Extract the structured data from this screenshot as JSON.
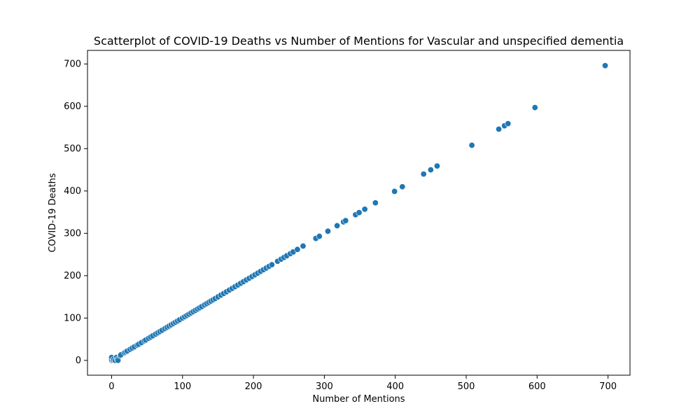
{
  "chart_data": {
    "type": "scatter",
    "title": "Scatterplot of COVID-19 Deaths vs Number of Mentions for Vascular and unspecified dementia",
    "xlabel": "Number of Mentions",
    "ylabel": "COVID-19 Deaths",
    "xlim": [
      -34,
      731
    ],
    "ylim": [
      -35,
      732
    ],
    "xticks": [
      0,
      100,
      200,
      300,
      400,
      500,
      600,
      700
    ],
    "yticks": [
      0,
      100,
      200,
      300,
      400,
      500,
      600,
      700
    ],
    "grid": false,
    "marker_color": "#1f77b4",
    "points": [
      {
        "x": 0,
        "y": 0
      },
      {
        "x": 0,
        "y": 2
      },
      {
        "x": 0,
        "y": 7
      },
      {
        "x": 2,
        "y": 1
      },
      {
        "x": 3,
        "y": 3
      },
      {
        "x": 5,
        "y": 0
      },
      {
        "x": 7,
        "y": 7
      },
      {
        "x": 8,
        "y": 2
      },
      {
        "x": 9,
        "y": 0
      },
      {
        "x": 12,
        "y": 11
      },
      {
        "x": 13,
        "y": 13
      },
      {
        "x": 18,
        "y": 18
      },
      {
        "x": 20,
        "y": 20
      },
      {
        "x": 22,
        "y": 22
      },
      {
        "x": 26,
        "y": 26
      },
      {
        "x": 29,
        "y": 29
      },
      {
        "x": 32,
        "y": 32
      },
      {
        "x": 36,
        "y": 36
      },
      {
        "x": 38,
        "y": 38
      },
      {
        "x": 42,
        "y": 42
      },
      {
        "x": 46,
        "y": 46
      },
      {
        "x": 48,
        "y": 48
      },
      {
        "x": 52,
        "y": 52
      },
      {
        "x": 55,
        "y": 55
      },
      {
        "x": 58,
        "y": 58
      },
      {
        "x": 62,
        "y": 62
      },
      {
        "x": 65,
        "y": 65
      },
      {
        "x": 68,
        "y": 68
      },
      {
        "x": 71,
        "y": 71
      },
      {
        "x": 75,
        "y": 75
      },
      {
        "x": 78,
        "y": 78
      },
      {
        "x": 81,
        "y": 81
      },
      {
        "x": 84,
        "y": 84
      },
      {
        "x": 87,
        "y": 87
      },
      {
        "x": 90,
        "y": 90
      },
      {
        "x": 93,
        "y": 93
      },
      {
        "x": 96,
        "y": 96
      },
      {
        "x": 100,
        "y": 100
      },
      {
        "x": 103,
        "y": 103
      },
      {
        "x": 106,
        "y": 106
      },
      {
        "x": 109,
        "y": 109
      },
      {
        "x": 112,
        "y": 112
      },
      {
        "x": 115,
        "y": 115
      },
      {
        "x": 118,
        "y": 118
      },
      {
        "x": 121,
        "y": 121
      },
      {
        "x": 124,
        "y": 124
      },
      {
        "x": 127,
        "y": 127
      },
      {
        "x": 131,
        "y": 131
      },
      {
        "x": 134,
        "y": 134
      },
      {
        "x": 137,
        "y": 137
      },
      {
        "x": 140,
        "y": 140
      },
      {
        "x": 143,
        "y": 143
      },
      {
        "x": 146,
        "y": 146
      },
      {
        "x": 150,
        "y": 150
      },
      {
        "x": 154,
        "y": 154
      },
      {
        "x": 158,
        "y": 158
      },
      {
        "x": 162,
        "y": 162
      },
      {
        "x": 166,
        "y": 166
      },
      {
        "x": 170,
        "y": 170
      },
      {
        "x": 174,
        "y": 174
      },
      {
        "x": 178,
        "y": 178
      },
      {
        "x": 182,
        "y": 182
      },
      {
        "x": 186,
        "y": 186
      },
      {
        "x": 190,
        "y": 190
      },
      {
        "x": 194,
        "y": 194
      },
      {
        "x": 198,
        "y": 198
      },
      {
        "x": 202,
        "y": 202
      },
      {
        "x": 206,
        "y": 206
      },
      {
        "x": 210,
        "y": 210
      },
      {
        "x": 214,
        "y": 214
      },
      {
        "x": 218,
        "y": 218
      },
      {
        "x": 222,
        "y": 222
      },
      {
        "x": 226,
        "y": 226
      },
      {
        "x": 234,
        "y": 234
      },
      {
        "x": 239,
        "y": 239
      },
      {
        "x": 243,
        "y": 243
      },
      {
        "x": 247,
        "y": 247
      },
      {
        "x": 252,
        "y": 252
      },
      {
        "x": 256,
        "y": 256
      },
      {
        "x": 262,
        "y": 262
      },
      {
        "x": 270,
        "y": 270
      },
      {
        "x": 288,
        "y": 288
      },
      {
        "x": 293,
        "y": 293
      },
      {
        "x": 305,
        "y": 305
      },
      {
        "x": 318,
        "y": 318
      },
      {
        "x": 327,
        "y": 327
      },
      {
        "x": 330,
        "y": 330
      },
      {
        "x": 344,
        "y": 344
      },
      {
        "x": 349,
        "y": 349
      },
      {
        "x": 357,
        "y": 357
      },
      {
        "x": 372,
        "y": 372
      },
      {
        "x": 399,
        "y": 399
      },
      {
        "x": 410,
        "y": 410
      },
      {
        "x": 440,
        "y": 440
      },
      {
        "x": 450,
        "y": 450
      },
      {
        "x": 459,
        "y": 459
      },
      {
        "x": 508,
        "y": 508
      },
      {
        "x": 546,
        "y": 546
      },
      {
        "x": 554,
        "y": 554
      },
      {
        "x": 559,
        "y": 559
      },
      {
        "x": 597,
        "y": 597
      },
      {
        "x": 696,
        "y": 696
      }
    ]
  }
}
